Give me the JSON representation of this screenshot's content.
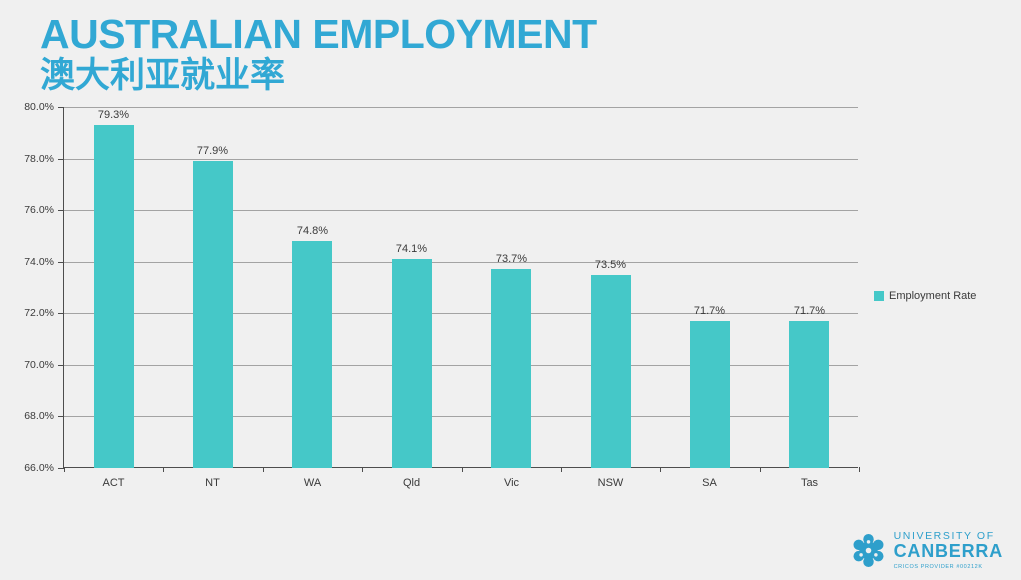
{
  "page": {
    "background": "#f0f0f0"
  },
  "header": {
    "title": "AUSTRALIAN EMPLOYMENT",
    "subtitle": "澳大利亚就业率",
    "title_color": "#31a8d4"
  },
  "chart_data": {
    "type": "bar",
    "title": "AUSTRALIAN EMPLOYMENT",
    "subtitle": "澳大利亚就业率",
    "categories": [
      "ACT",
      "NT",
      "WA",
      "Qld",
      "Vic",
      "NSW",
      "SA",
      "Tas"
    ],
    "values": [
      79.3,
      77.9,
      74.8,
      74.1,
      73.7,
      73.5,
      71.7,
      71.7
    ],
    "value_labels": [
      "79.3%",
      "77.9%",
      "74.8%",
      "74.1%",
      "73.7%",
      "73.5%",
      "71.7%",
      "71.7%"
    ],
    "xlabel": "",
    "ylabel": "",
    "ylim": [
      66,
      80
    ],
    "ytick_step": 2,
    "ytick_labels": [
      "80.0%",
      "78.0%",
      "76.0%",
      "74.0%",
      "72.0%",
      "70.0%",
      "68.0%",
      "66.0%"
    ],
    "grid": true,
    "bar_color": "#45c8c8",
    "legend": {
      "label": "Employment Rate",
      "color": "#45c8c8",
      "position": "right"
    }
  },
  "logo": {
    "icon": "snowflake-icon",
    "line1": "UNIVERSITY OF",
    "line2": "CANBERRA",
    "subtext": "CRICOS PROVIDER #00212K",
    "color": "#2e9fcb"
  }
}
